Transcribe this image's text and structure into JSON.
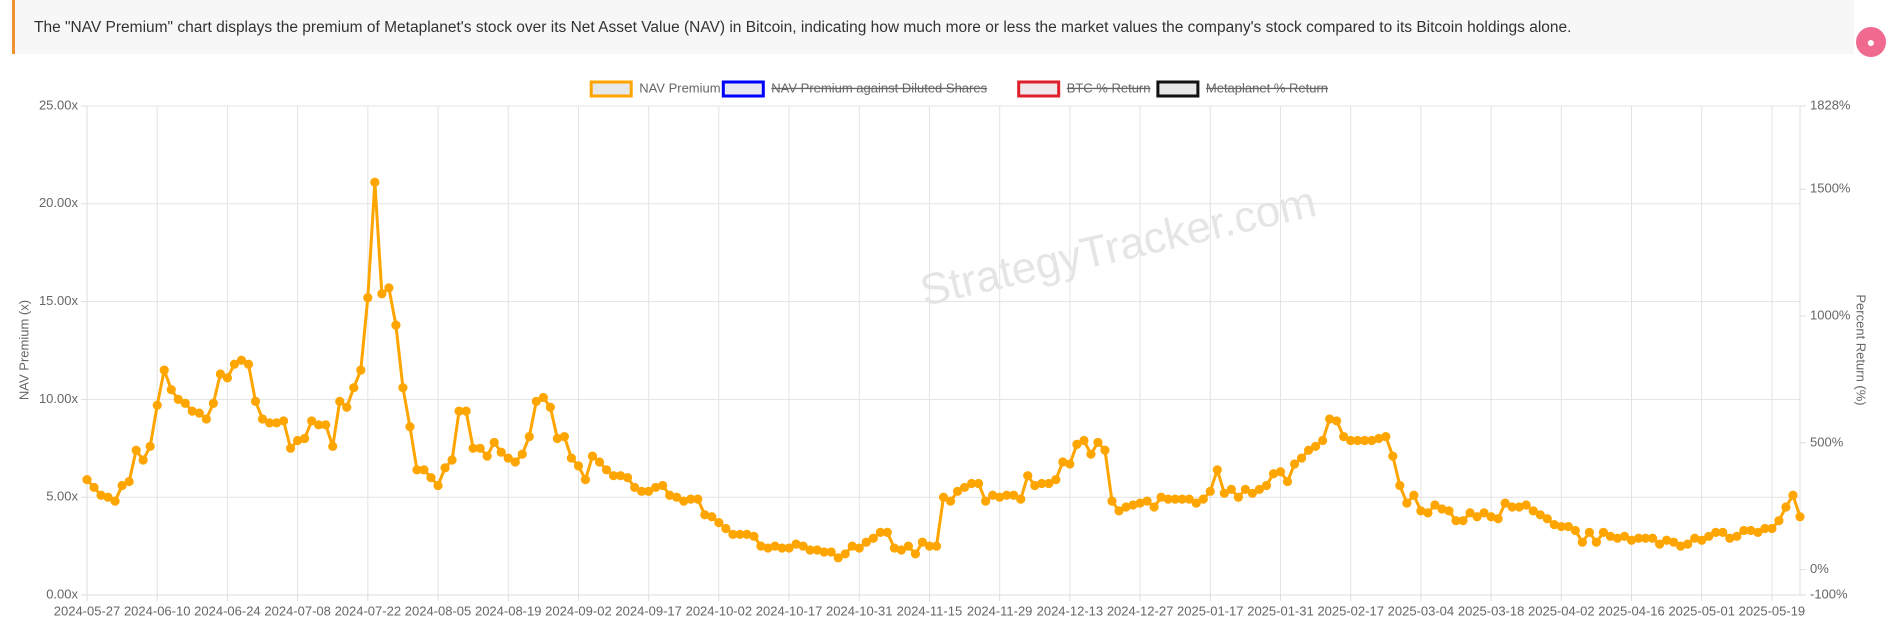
{
  "banner": {
    "text": "The \"NAV Premium\" chart displays the premium of Metaplanet's stock over its Net Asset Value (NAV) in Bitcoin, indicating how much more or less the market values the company's stock compared to its Bitcoin holdings alone."
  },
  "chart_data": {
    "type": "line",
    "watermark": "StrategyTracker.com",
    "y_label": "NAV Premium (x)",
    "y2_label": "Percent Return (%)",
    "grid": true,
    "legend": "top",
    "ylim": [
      0,
      25
    ],
    "yticks": [
      {
        "value": 0,
        "label": "0.00x"
      },
      {
        "value": 5,
        "label": "5.00x"
      },
      {
        "value": 10,
        "label": "10.00x"
      },
      {
        "value": 15,
        "label": "15.00x"
      },
      {
        "value": 20,
        "label": "20.00x"
      },
      {
        "value": 25,
        "label": "25.00x"
      }
    ],
    "y2lim": [
      -100,
      1828
    ],
    "y2ticks": [
      {
        "value": -100,
        "label": "-100%"
      },
      {
        "value": 0,
        "label": "0%"
      },
      {
        "value": 500,
        "label": "500%"
      },
      {
        "value": 1000,
        "label": "1000%"
      },
      {
        "value": 1500,
        "label": "1500%"
      },
      {
        "value": 1828,
        "label": "1828%"
      }
    ],
    "categories": [
      "2024-05-27",
      null,
      null,
      null,
      null,
      null,
      null,
      null,
      null,
      null,
      "2024-06-10",
      null,
      null,
      null,
      null,
      null,
      null,
      null,
      null,
      null,
      "2024-06-24",
      null,
      null,
      null,
      null,
      null,
      null,
      null,
      null,
      null,
      "2024-07-08",
      null,
      null,
      null,
      null,
      null,
      null,
      null,
      null,
      null,
      "2024-07-22",
      null,
      null,
      null,
      null,
      null,
      null,
      null,
      null,
      null,
      "2024-08-05",
      null,
      null,
      null,
      null,
      null,
      null,
      null,
      null,
      null,
      "2024-08-19",
      null,
      null,
      null,
      null,
      null,
      null,
      null,
      null,
      null,
      "2024-09-02",
      null,
      null,
      null,
      null,
      null,
      null,
      null,
      null,
      null,
      "2024-09-17",
      null,
      null,
      null,
      null,
      null,
      null,
      null,
      null,
      null,
      "2024-10-02",
      null,
      null,
      null,
      null,
      null,
      null,
      null,
      null,
      null,
      "2024-10-17",
      null,
      null,
      null,
      null,
      null,
      null,
      null,
      null,
      null,
      "2024-10-31",
      null,
      null,
      null,
      null,
      null,
      null,
      null,
      null,
      null,
      "2024-11-15",
      null,
      null,
      null,
      null,
      null,
      null,
      null,
      null,
      null,
      "2024-11-29",
      null,
      null,
      null,
      null,
      null,
      null,
      null,
      null,
      null,
      "2024-12-13",
      null,
      null,
      null,
      null,
      null,
      null,
      null,
      null,
      null,
      "2024-12-27",
      null,
      null,
      null,
      null,
      null,
      null,
      null,
      null,
      null,
      "2025-01-17",
      null,
      null,
      null,
      null,
      null,
      null,
      null,
      null,
      null,
      "2025-01-31",
      null,
      null,
      null,
      null,
      null,
      null,
      null,
      null,
      null,
      "2025-02-17",
      null,
      null,
      null,
      null,
      null,
      null,
      null,
      null,
      null,
      "2025-03-04",
      null,
      null,
      null,
      null,
      null,
      null,
      null,
      null,
      null,
      "2025-03-18",
      null,
      null,
      null,
      null,
      null,
      null,
      null,
      null,
      null,
      "2025-04-02",
      null,
      null,
      null,
      null,
      null,
      null,
      null,
      null,
      null,
      "2025-04-16",
      null,
      null,
      null,
      null,
      null,
      null,
      null,
      null,
      null,
      "2025-05-01",
      null,
      null,
      null,
      null,
      null,
      null,
      null,
      null,
      null,
      "2025-05-19",
      null,
      null,
      null,
      null
    ],
    "series": [
      {
        "name": "NAV Premium",
        "color": "#ffa500",
        "fill": "#e8e8e8",
        "hidden": false,
        "values": [
          5.9,
          5.5,
          5.1,
          5.0,
          4.8,
          5.6,
          5.8,
          7.4,
          6.9,
          7.6,
          9.7,
          11.5,
          10.5,
          10.0,
          9.8,
          9.4,
          9.3,
          9.0,
          9.8,
          11.3,
          11.1,
          11.8,
          12.0,
          11.8,
          9.9,
          9.0,
          8.8,
          8.8,
          8.9,
          7.5,
          7.9,
          8.0,
          8.9,
          8.7,
          8.7,
          7.6,
          9.9,
          9.6,
          10.6,
          11.5,
          15.2,
          21.1,
          15.4,
          15.7,
          13.8,
          10.6,
          8.6,
          6.4,
          6.4,
          6.0,
          5.6,
          6.5,
          6.9,
          9.4,
          9.4,
          7.5,
          7.5,
          7.1,
          7.8,
          7.3,
          7.0,
          6.8,
          7.2,
          8.1,
          9.9,
          10.1,
          9.6,
          8.0,
          8.1,
          7.0,
          6.6,
          5.9,
          7.1,
          6.8,
          6.4,
          6.1,
          6.1,
          6.0,
          5.5,
          5.3,
          5.3,
          5.5,
          5.6,
          5.1,
          5.0,
          4.8,
          4.9,
          4.9,
          4.1,
          4.0,
          3.7,
          3.4,
          3.1,
          3.1,
          3.1,
          3.0,
          2.5,
          2.4,
          2.5,
          2.4,
          2.4,
          2.6,
          2.5,
          2.3,
          2.3,
          2.2,
          2.2,
          1.9,
          2.1,
          2.5,
          2.4,
          2.7,
          2.9,
          3.2,
          3.2,
          2.4,
          2.3,
          2.5,
          2.1,
          2.7,
          2.5,
          2.5,
          5.0,
          4.8,
          5.3,
          5.5,
          5.7,
          5.7,
          4.8,
          5.1,
          5.0,
          5.1,
          5.1,
          4.9,
          6.1,
          5.6,
          5.7,
          5.7,
          5.9,
          6.8,
          6.7,
          7.7,
          7.9,
          7.2,
          7.8,
          7.4,
          4.8,
          4.3,
          4.5,
          4.6,
          4.7,
          4.8,
          4.5,
          5.0,
          4.9,
          4.9,
          4.9,
          4.9,
          4.7,
          4.9,
          5.3,
          6.4,
          5.2,
          5.4,
          5.0,
          5.4,
          5.2,
          5.4,
          5.6,
          6.2,
          6.3,
          5.8,
          6.7,
          7.0,
          7.4,
          7.6,
          7.9,
          9.0,
          8.9,
          8.1,
          7.9,
          7.9,
          7.9,
          7.9,
          8.0,
          8.1,
          7.1,
          5.6,
          4.7,
          5.1,
          4.3,
          4.2,
          4.6,
          4.4,
          4.3,
          3.8,
          3.8,
          4.2,
          4.0,
          4.2,
          4.0,
          3.9,
          4.7,
          4.5,
          4.5,
          4.6,
          4.3,
          4.1,
          3.9,
          3.6,
          3.5,
          3.5,
          3.3,
          2.7,
          3.2,
          2.7,
          3.2,
          3.0,
          2.9,
          3.0,
          2.8,
          2.9,
          2.9,
          2.9,
          2.6,
          2.8,
          2.7,
          2.5,
          2.6,
          2.9,
          2.8,
          3.0,
          3.2,
          3.2,
          2.9,
          3.0,
          3.3,
          3.3,
          3.2,
          3.4,
          3.4,
          3.8,
          4.5,
          5.1,
          4.0
        ]
      },
      {
        "name": "NAV Premium against Diluted Shares",
        "color": "#0000ff",
        "fill": "#e8e8f0",
        "hidden": true
      },
      {
        "name": "BTC % Return",
        "color": "#e0202a",
        "fill": "#f0e8ea",
        "hidden": true,
        "axis": "y2"
      },
      {
        "name": "Metaplanet % Return",
        "color": "#111111",
        "fill": "#e8e8e8",
        "hidden": true,
        "axis": "y2"
      }
    ]
  }
}
